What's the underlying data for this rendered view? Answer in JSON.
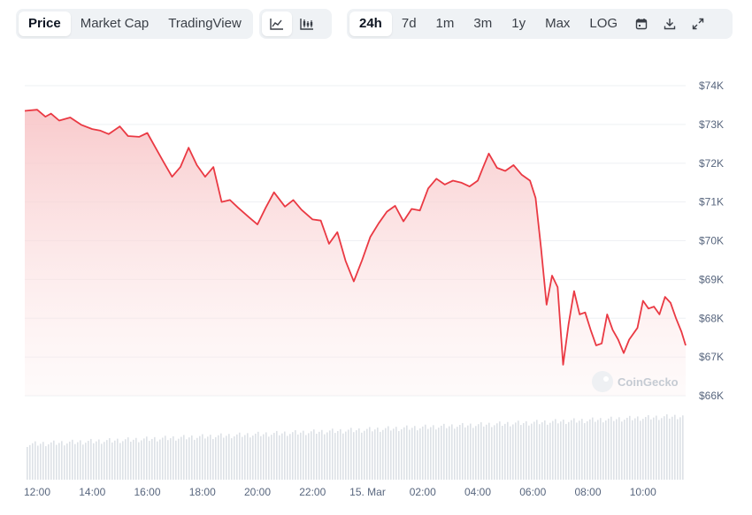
{
  "toolbar": {
    "data_tabs": [
      {
        "label": "Price",
        "active": true
      },
      {
        "label": "Market Cap",
        "active": false
      },
      {
        "label": "TradingView",
        "active": false
      }
    ],
    "chart_type_icons": [
      "line-chart-icon",
      "candlestick-chart-icon"
    ],
    "ranges": [
      {
        "label": "24h",
        "active": true
      },
      {
        "label": "7d",
        "active": false
      },
      {
        "label": "1m",
        "active": false
      },
      {
        "label": "3m",
        "active": false
      },
      {
        "label": "1y",
        "active": false
      },
      {
        "label": "Max",
        "active": false
      },
      {
        "label": "LOG",
        "active": false
      }
    ],
    "action_icons": [
      "calendar-icon",
      "download-icon",
      "expand-icon"
    ]
  },
  "watermark": "CoinGecko",
  "colors": {
    "line": "#ea3943",
    "fill_top": "#f8c7c9",
    "volume": "#dde1e6",
    "grid": "#eef0f3"
  },
  "chart_data": {
    "type": "area",
    "title": "",
    "xlabel": "",
    "ylabel": "",
    "ylim": [
      66000,
      74000
    ],
    "y_ticks": [
      "$66K",
      "$67K",
      "$68K",
      "$69K",
      "$70K",
      "$71K",
      "$72K",
      "$73K",
      "$74K"
    ],
    "x_ticks": [
      "12:00",
      "14:00",
      "16:00",
      "18:00",
      "20:00",
      "22:00",
      "15. Mar",
      "02:00",
      "04:00",
      "06:00",
      "08:00",
      "10:00"
    ],
    "x_range_hours": [
      -0.45,
      23.55
    ],
    "grid": true,
    "series": [
      {
        "points": [
          [
            -0.45,
            73350
          ],
          [
            0.0,
            73380
          ],
          [
            0.3,
            73200
          ],
          [
            0.5,
            73280
          ],
          [
            0.8,
            73100
          ],
          [
            1.2,
            73180
          ],
          [
            1.6,
            72990
          ],
          [
            2.0,
            72880
          ],
          [
            2.3,
            72840
          ],
          [
            2.6,
            72750
          ],
          [
            3.0,
            72950
          ],
          [
            3.3,
            72700
          ],
          [
            3.7,
            72680
          ],
          [
            4.0,
            72780
          ],
          [
            4.3,
            72400
          ],
          [
            4.6,
            72020
          ],
          [
            4.9,
            71650
          ],
          [
            5.2,
            71900
          ],
          [
            5.5,
            72400
          ],
          [
            5.8,
            71950
          ],
          [
            6.1,
            71650
          ],
          [
            6.4,
            71900
          ],
          [
            6.7,
            71000
          ],
          [
            7.0,
            71050
          ],
          [
            7.3,
            70850
          ],
          [
            7.7,
            70600
          ],
          [
            8.0,
            70420
          ],
          [
            8.3,
            70850
          ],
          [
            8.6,
            71250
          ],
          [
            9.0,
            70880
          ],
          [
            9.3,
            71050
          ],
          [
            9.6,
            70800
          ],
          [
            10.0,
            70550
          ],
          [
            10.3,
            70520
          ],
          [
            10.6,
            69920
          ],
          [
            10.9,
            70220
          ],
          [
            11.2,
            69480
          ],
          [
            11.5,
            68950
          ],
          [
            11.8,
            69500
          ],
          [
            12.1,
            70100
          ],
          [
            12.4,
            70450
          ],
          [
            12.7,
            70750
          ],
          [
            13.0,
            70900
          ],
          [
            13.3,
            70500
          ],
          [
            13.6,
            70820
          ],
          [
            13.9,
            70780
          ],
          [
            14.2,
            71350
          ],
          [
            14.5,
            71600
          ],
          [
            14.8,
            71450
          ],
          [
            15.1,
            71550
          ],
          [
            15.4,
            71500
          ],
          [
            15.7,
            71400
          ],
          [
            16.0,
            71550
          ],
          [
            16.2,
            71900
          ],
          [
            16.4,
            72250
          ],
          [
            16.7,
            71880
          ],
          [
            17.0,
            71800
          ],
          [
            17.3,
            71950
          ],
          [
            17.6,
            71700
          ],
          [
            17.9,
            71550
          ],
          [
            18.1,
            71100
          ],
          [
            18.3,
            69800
          ],
          [
            18.5,
            68350
          ],
          [
            18.7,
            69100
          ],
          [
            18.9,
            68800
          ],
          [
            19.1,
            66800
          ],
          [
            19.3,
            67850
          ],
          [
            19.5,
            68700
          ],
          [
            19.7,
            68100
          ],
          [
            19.9,
            68150
          ],
          [
            20.1,
            67700
          ],
          [
            20.3,
            67300
          ],
          [
            20.5,
            67350
          ],
          [
            20.7,
            68100
          ],
          [
            20.9,
            67700
          ],
          [
            21.1,
            67450
          ],
          [
            21.3,
            67100
          ],
          [
            21.5,
            67450
          ],
          [
            21.8,
            67750
          ],
          [
            22.0,
            68450
          ],
          [
            22.2,
            68250
          ],
          [
            22.4,
            68300
          ],
          [
            22.6,
            68100
          ],
          [
            22.8,
            68550
          ],
          [
            23.0,
            68400
          ],
          [
            23.2,
            68000
          ],
          [
            23.4,
            67650
          ],
          [
            23.55,
            67300
          ]
        ]
      }
    ]
  }
}
